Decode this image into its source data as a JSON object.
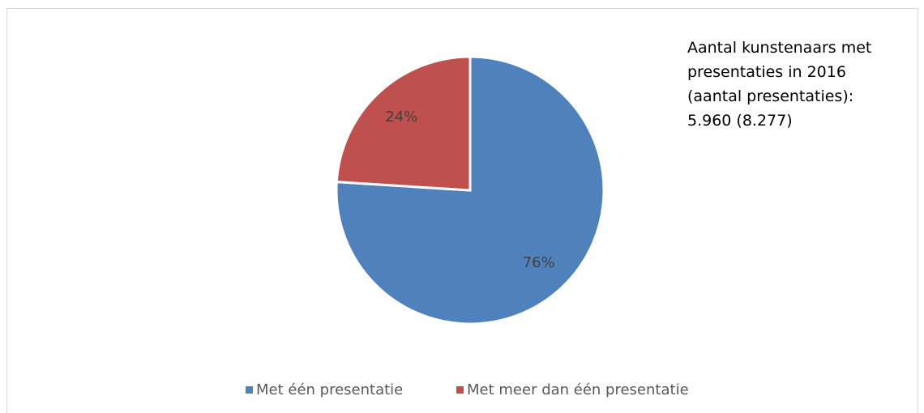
{
  "chart_data": {
    "type": "pie",
    "categories": [
      "Met één presentatie",
      "Met meer dan één presentatie"
    ],
    "values": [
      76,
      24
    ],
    "value_labels": [
      "76%",
      "24%"
    ],
    "colors": [
      "#4f81bd",
      "#c0504d"
    ],
    "annotation": "Aantal kunstenaars met presentaties in 2016 (aantal presentaties): 5.960 (8.277)",
    "legend": "bottom"
  }
}
